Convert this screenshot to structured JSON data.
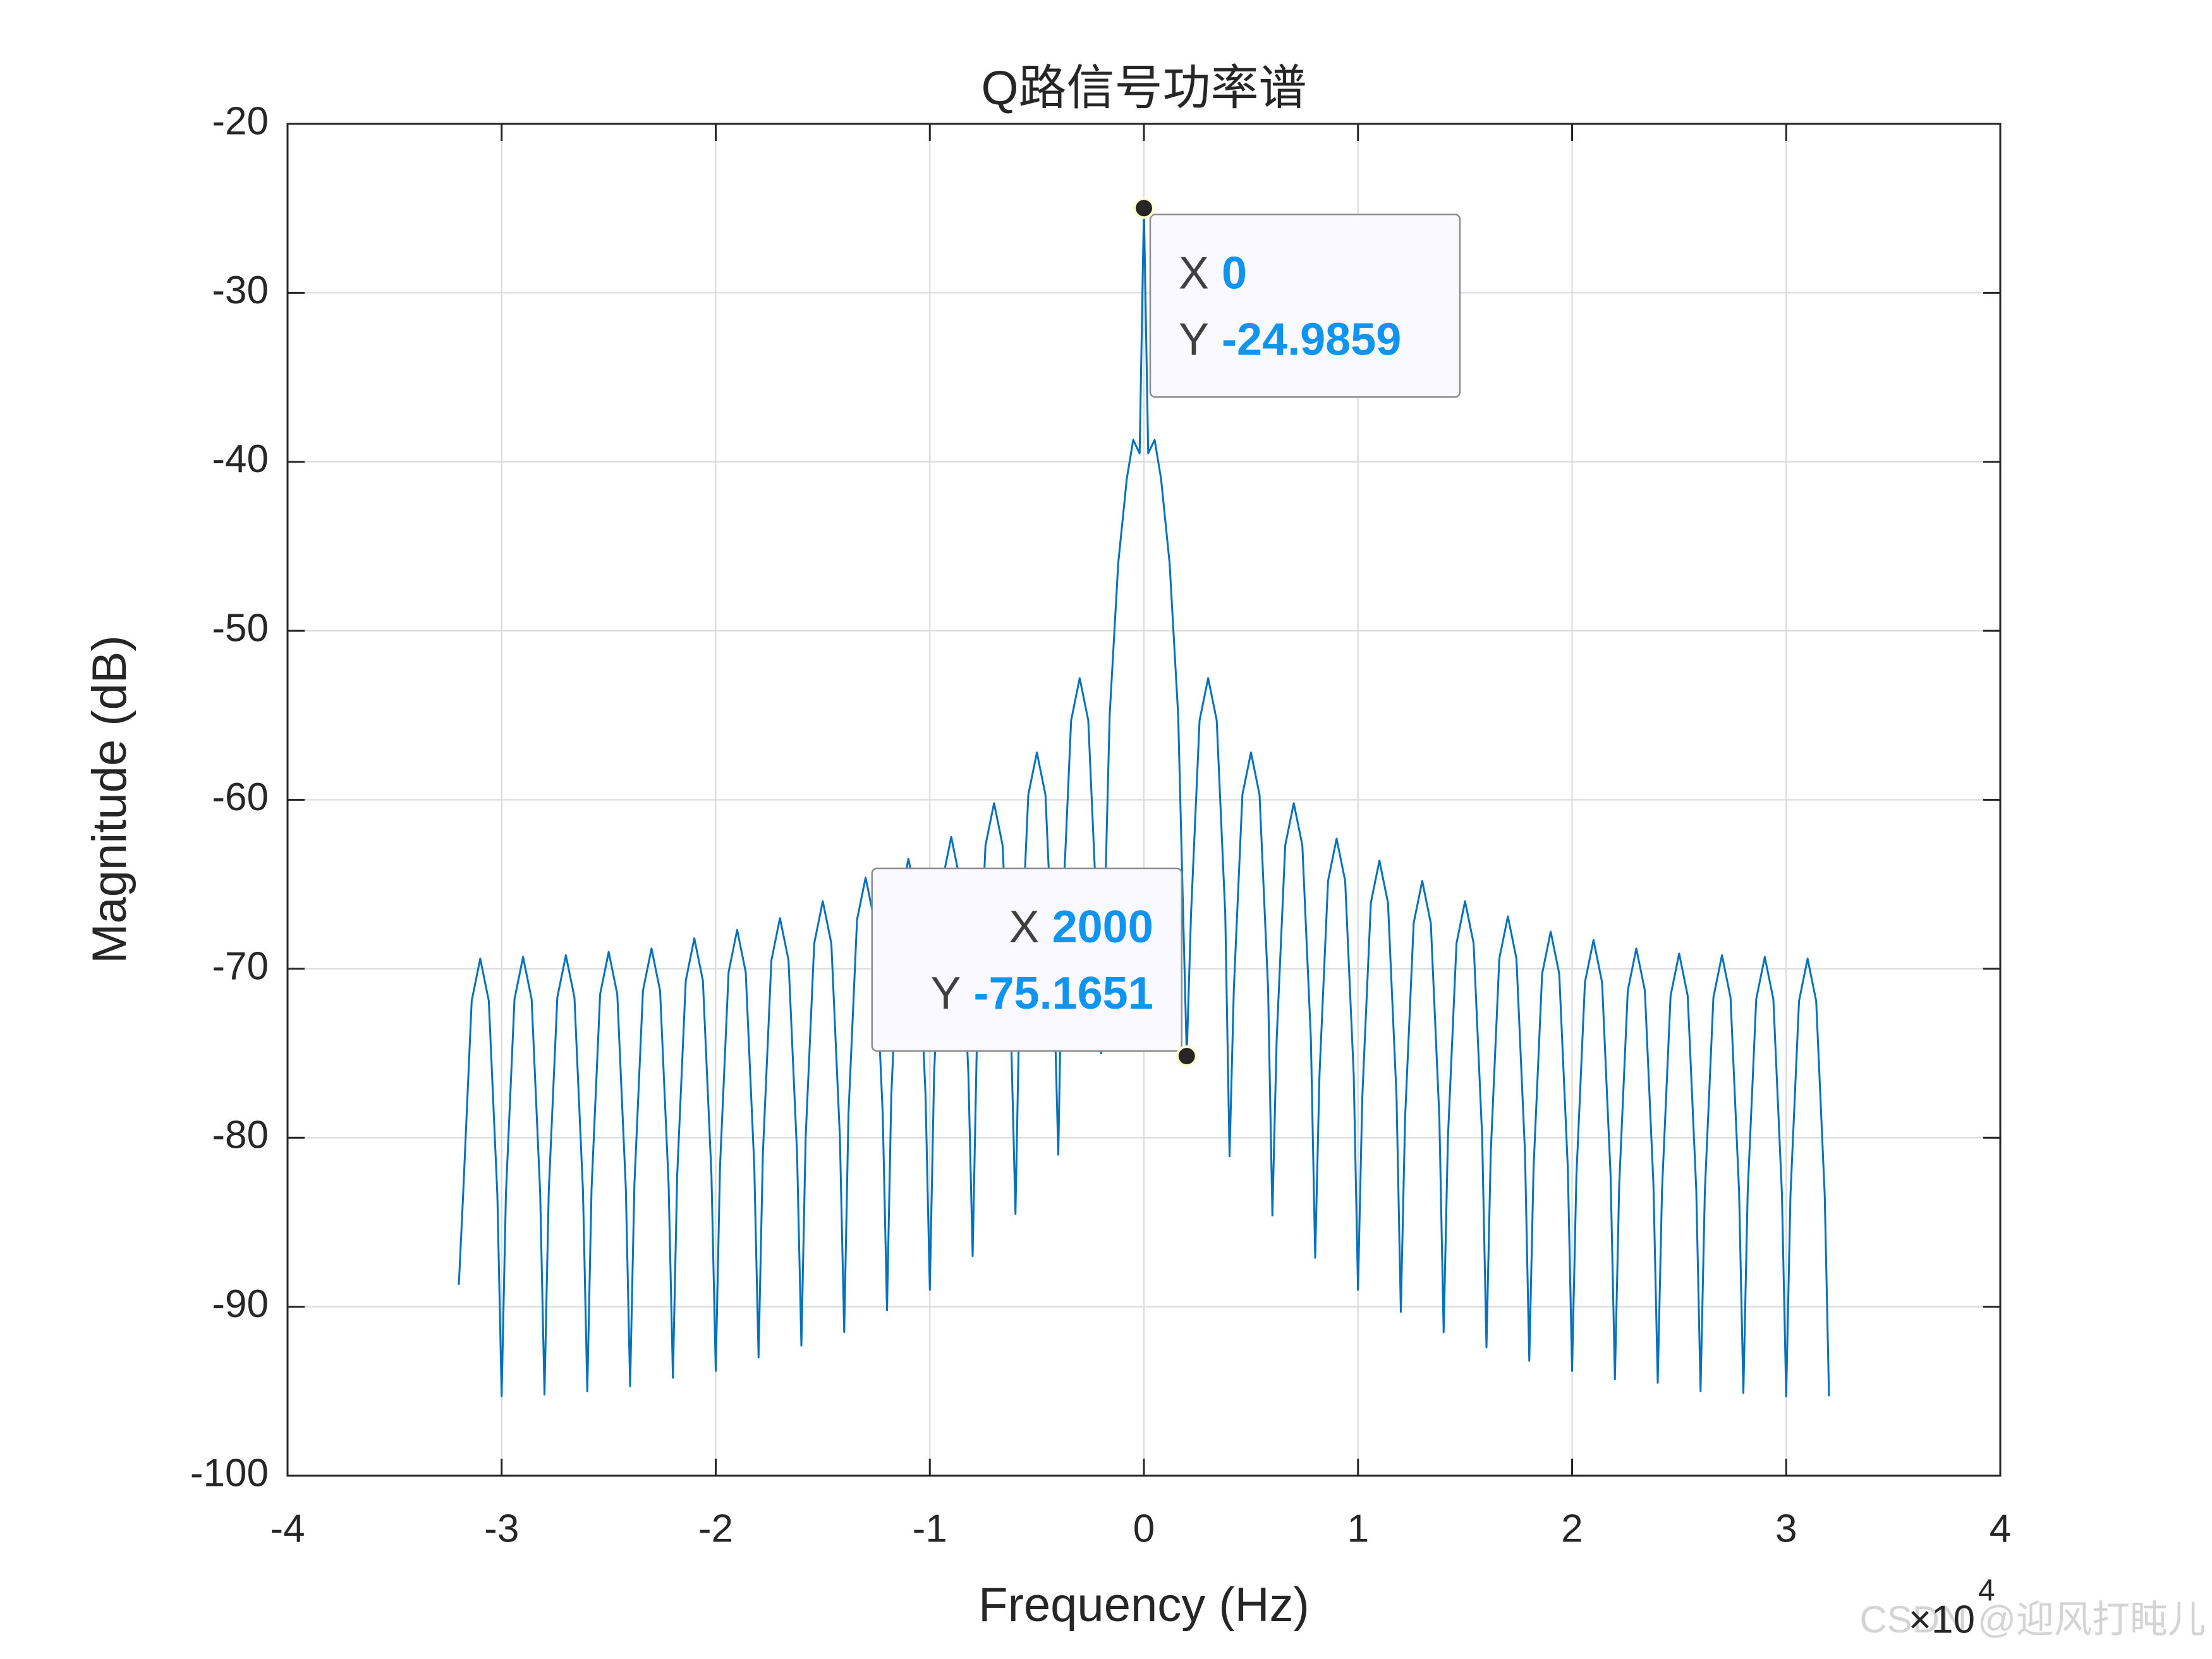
{
  "chart_data": {
    "type": "line",
    "title": "Q路信号功率谱",
    "x_label": "Frequency (Hz)",
    "y_label": "Magnitude (dB)",
    "x_exponent_base": "×10",
    "x_exponent": "4",
    "watermark": "CSDN @迎风打盹儿",
    "xlim": [
      -40000,
      40000
    ],
    "ylim": [
      -100,
      -20
    ],
    "xticks": [
      {
        "value": -40000,
        "label": "-4"
      },
      {
        "value": -30000,
        "label": "-3"
      },
      {
        "value": -20000,
        "label": "-2"
      },
      {
        "value": -10000,
        "label": "-1"
      },
      0,
      {
        "value": 10000,
        "label": "1"
      },
      {
        "value": 20000,
        "label": "2"
      },
      {
        "value": 30000,
        "label": "3"
      },
      {
        "value": 40000,
        "label": "4"
      }
    ],
    "yticks": [
      -100,
      -90,
      -80,
      -70,
      -60,
      -50,
      -40,
      -30,
      -20
    ],
    "grid": true,
    "series": [
      {
        "color": "#0072bd",
        "x": [
          -32000,
          -31800,
          -31400,
          -31000,
          -30600,
          -30200,
          -30000,
          -29800,
          -29400,
          -29000,
          -28600,
          -28200,
          -28000,
          -27800,
          -27400,
          -27000,
          -26600,
          -26200,
          -26000,
          -25800,
          -25400,
          -25000,
          -24600,
          -24200,
          -24000,
          -23800,
          -23400,
          -23000,
          -22600,
          -22200,
          -22000,
          -21800,
          -21400,
          -21000,
          -20600,
          -20200,
          -20000,
          -19800,
          -19400,
          -19000,
          -18600,
          -18200,
          -18000,
          -17800,
          -17400,
          -17000,
          -16600,
          -16200,
          -16000,
          -15800,
          -15400,
          -15000,
          -14600,
          -14200,
          -14000,
          -13800,
          -13400,
          -13000,
          -12600,
          -12200,
          -12000,
          -11800,
          -11400,
          -11000,
          -10600,
          -10200,
          -10000,
          -9800,
          -9400,
          -9000,
          -8600,
          -8200,
          -8000,
          -7800,
          -7400,
          -7000,
          -6600,
          -6200,
          -6000,
          -5800,
          -5400,
          -5000,
          -4600,
          -4200,
          -4000,
          -3800,
          -3400,
          -3000,
          -2600,
          -2200,
          -2000,
          -1600,
          -1200,
          -800,
          -500,
          -200,
          0,
          200,
          500,
          800,
          1200,
          1600,
          2000,
          2200,
          2600,
          3000,
          3400,
          3800,
          4000,
          4200,
          4600,
          5000,
          5400,
          5800,
          6000,
          6200,
          6600,
          7000,
          7400,
          7800,
          8000,
          8200,
          8600,
          9000,
          9400,
          9800,
          10000,
          10200,
          10600,
          11000,
          11400,
          11800,
          12000,
          12200,
          12600,
          13000,
          13400,
          13800,
          14000,
          14200,
          14600,
          15000,
          15400,
          15800,
          16000,
          16200,
          16600,
          17000,
          17400,
          17800,
          18000,
          18200,
          18600,
          19000,
          19400,
          19800,
          20000,
          20200,
          20600,
          21000,
          21400,
          21800,
          22000,
          22200,
          22600,
          23000,
          23400,
          23800,
          24000,
          24200,
          24600,
          25000,
          25400,
          25800,
          26000,
          26200,
          26600,
          27000,
          27400,
          27800,
          28000,
          28200,
          28600,
          29000,
          29400,
          29800,
          30000,
          30200,
          30600,
          31000,
          31400,
          31800,
          32000
        ],
        "values": [
          -88.7,
          -83.4,
          -71.9,
          -69.4,
          -71.9,
          -83.4,
          -95.3,
          -83.3,
          -71.8,
          -69.3,
          -71.8,
          -83.3,
          -95.2,
          -83.2,
          -71.7,
          -69.2,
          -71.7,
          -83.2,
          -95.0,
          -83.0,
          -71.5,
          -69.0,
          -71.5,
          -83.0,
          -94.7,
          -82.8,
          -71.3,
          -68.8,
          -71.3,
          -82.8,
          -94.2,
          -82.2,
          -70.7,
          -68.2,
          -70.7,
          -82.2,
          -93.8,
          -81.7,
          -70.2,
          -67.7,
          -70.2,
          -81.7,
          -93.0,
          -81.0,
          -69.5,
          -67.0,
          -69.5,
          -81.0,
          -92.3,
          -80.0,
          -68.5,
          -66.0,
          -68.5,
          -80.0,
          -91.5,
          -78.6,
          -67.1,
          -64.6,
          -67.1,
          -78.6,
          -90.2,
          -77.5,
          -66.0,
          -63.5,
          -66.0,
          -77.5,
          -89.0,
          -76.2,
          -64.7,
          -62.2,
          -64.7,
          -76.2,
          -87.0,
          -74.2,
          -62.7,
          -60.2,
          -62.7,
          -74.2,
          -84.5,
          -71.2,
          -59.7,
          -57.2,
          -59.7,
          -71.2,
          -81.0,
          -66.8,
          -55.3,
          -52.8,
          -55.3,
          -66.8,
          -75.0,
          -55,
          -46,
          -41,
          -38.7,
          -39.5,
          -24.9859,
          -39.5,
          -38.7,
          -41,
          -46,
          -55,
          -75.1651,
          -66.8,
          -55.3,
          -52.8,
          -55.3,
          -66.8,
          -81.1,
          -71.2,
          -59.7,
          -57.2,
          -59.7,
          -71.2,
          -84.6,
          -74.2,
          -62.7,
          -60.2,
          -62.7,
          -74.2,
          -87.1,
          -76.3,
          -64.8,
          -62.3,
          -64.8,
          -76.3,
          -89.0,
          -77.6,
          -66.1,
          -63.6,
          -66.1,
          -77.6,
          -90.3,
          -78.8,
          -67.3,
          -64.8,
          -67.3,
          -78.8,
          -91.5,
          -80.0,
          -68.5,
          -66.0,
          -68.5,
          -80.0,
          -92.4,
          -80.9,
          -69.4,
          -66.9,
          -69.4,
          -80.9,
          -93.2,
          -81.8,
          -70.3,
          -67.8,
          -70.3,
          -81.8,
          -93.8,
          -82.3,
          -70.8,
          -68.3,
          -70.8,
          -82.3,
          -94.3,
          -82.8,
          -71.3,
          -68.8,
          -71.3,
          -82.8,
          -94.5,
          -83.1,
          -71.6,
          -69.1,
          -71.6,
          -83.1,
          -95.0,
          -83.2,
          -71.7,
          -69.2,
          -71.7,
          -83.2,
          -95.1,
          -83.3,
          -71.8,
          -69.3,
          -71.8,
          -83.3,
          -95.3,
          -83.4,
          -71.9,
          -69.4,
          -71.9,
          -83.4,
          -95.3
        ]
      }
    ],
    "datatips": [
      {
        "x_name": "X",
        "y_name": "Y",
        "x": 0,
        "y": -24.9859
      },
      {
        "x_name": "X",
        "y_name": "Y",
        "x": 2000,
        "y": -75.1651
      }
    ]
  }
}
